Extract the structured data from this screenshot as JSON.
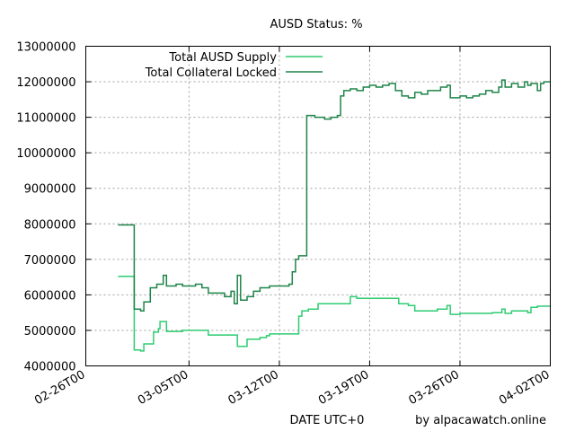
{
  "chart_data": {
    "type": "line",
    "title": "AUSD Status: %",
    "xlabel": "DATE UTC+0",
    "ylabel": "",
    "credit": "by alpacawatch.online",
    "xlim": [
      "2024-02-26",
      "2024-04-02"
    ],
    "ylim": [
      4000000,
      13000000
    ],
    "grid": true,
    "legend_position": "top-left",
    "x_ticks": [
      {
        "date": "2024-02-26",
        "label": "02-26T00"
      },
      {
        "date": "2024-03-05",
        "label": "03-05T00"
      },
      {
        "date": "2024-03-12",
        "label": "03-12T00"
      },
      {
        "date": "2024-03-19",
        "label": "03-19T00"
      },
      {
        "date": "2024-03-26",
        "label": "03-26T00"
      },
      {
        "date": "2024-04-02",
        "label": "04-02T00"
      }
    ],
    "y_ticks": [
      {
        "value": 4000000,
        "label": "4000000"
      },
      {
        "value": 5000000,
        "label": "5000000"
      },
      {
        "value": 6000000,
        "label": "6000000"
      },
      {
        "value": 7000000,
        "label": "7000000"
      },
      {
        "value": 8000000,
        "label": "8000000"
      },
      {
        "value": 9000000,
        "label": "9000000"
      },
      {
        "value": 10000000,
        "label": "10000000"
      },
      {
        "value": 11000000,
        "label": "11000000"
      },
      {
        "value": 12000000,
        "label": "12000000"
      },
      {
        "value": 13000000,
        "label": "13000000"
      }
    ],
    "series": [
      {
        "name": "Total AUSD Supply",
        "color": "#2ecc71",
        "points": [
          [
            "2024-02-28 12:00",
            6520000
          ],
          [
            "2024-02-29 17:00",
            6520000
          ],
          [
            "2024-02-29 18:00",
            4450000
          ],
          [
            "2024-03-01 06:00",
            4420000
          ],
          [
            "2024-03-01 12:00",
            4620000
          ],
          [
            "2024-03-02 00:00",
            4620000
          ],
          [
            "2024-03-02 06:00",
            4950000
          ],
          [
            "2024-03-02 15:00",
            5050000
          ],
          [
            "2024-03-02 18:00",
            5250000
          ],
          [
            "2024-03-03 00:00",
            5250000
          ],
          [
            "2024-03-03 06:00",
            4970000
          ],
          [
            "2024-03-04 00:00",
            4970000
          ],
          [
            "2024-03-04 12:00",
            5000000
          ],
          [
            "2024-03-06 00:00",
            5000000
          ],
          [
            "2024-03-06 12:00",
            4870000
          ],
          [
            "2024-03-08 12:00",
            4870000
          ],
          [
            "2024-03-08 18:00",
            4550000
          ],
          [
            "2024-03-09 06:00",
            4550000
          ],
          [
            "2024-03-09 12:00",
            4750000
          ],
          [
            "2024-03-10 00:00",
            4750000
          ],
          [
            "2024-03-10 12:00",
            4800000
          ],
          [
            "2024-03-11 00:00",
            4850000
          ],
          [
            "2024-03-11 06:00",
            4900000
          ],
          [
            "2024-03-13 09:00",
            4900000
          ],
          [
            "2024-03-13 12:00",
            5400000
          ],
          [
            "2024-03-13 18:00",
            5550000
          ],
          [
            "2024-03-14 06:00",
            5600000
          ],
          [
            "2024-03-15 00:00",
            5750000
          ],
          [
            "2024-03-17 00:00",
            5750000
          ],
          [
            "2024-03-17 12:00",
            5950000
          ],
          [
            "2024-03-18 00:00",
            5900000
          ],
          [
            "2024-03-20 12:00",
            5900000
          ],
          [
            "2024-03-21 06:00",
            5750000
          ],
          [
            "2024-03-22 00:00",
            5700000
          ],
          [
            "2024-03-22 12:00",
            5550000
          ],
          [
            "2024-03-24 00:00",
            5550000
          ],
          [
            "2024-03-24 06:00",
            5600000
          ],
          [
            "2024-03-25 00:00",
            5700000
          ],
          [
            "2024-03-25 06:00",
            5450000
          ],
          [
            "2024-03-26 00:00",
            5480000
          ],
          [
            "2024-03-28 12:00",
            5500000
          ],
          [
            "2024-03-29 06:00",
            5600000
          ],
          [
            "2024-03-29 12:00",
            5480000
          ],
          [
            "2024-03-30 00:00",
            5550000
          ],
          [
            "2024-03-31 06:00",
            5500000
          ],
          [
            "2024-03-31 12:00",
            5650000
          ],
          [
            "2024-04-01 00:00",
            5680000
          ],
          [
            "2024-04-02 00:00",
            5680000
          ]
        ]
      },
      {
        "name": "Total Collateral Locked",
        "color": "#1e8449",
        "points": [
          [
            "2024-02-28 12:00",
            7970000
          ],
          [
            "2024-02-29 17:00",
            7970000
          ],
          [
            "2024-02-29 18:00",
            5600000
          ],
          [
            "2024-03-01 06:00",
            5550000
          ],
          [
            "2024-03-01 12:00",
            5800000
          ],
          [
            "2024-03-02 00:00",
            6200000
          ],
          [
            "2024-03-02 12:00",
            6300000
          ],
          [
            "2024-03-03 00:00",
            6550000
          ],
          [
            "2024-03-03 06:00",
            6250000
          ],
          [
            "2024-03-04 00:00",
            6300000
          ],
          [
            "2024-03-04 12:00",
            6250000
          ],
          [
            "2024-03-05 12:00",
            6300000
          ],
          [
            "2024-03-06 00:00",
            6200000
          ],
          [
            "2024-03-06 12:00",
            6050000
          ],
          [
            "2024-03-07 12:00",
            6050000
          ],
          [
            "2024-03-07 18:00",
            5950000
          ],
          [
            "2024-03-08 06:00",
            6100000
          ],
          [
            "2024-03-08 12:00",
            5750000
          ],
          [
            "2024-03-08 18:00",
            6550000
          ],
          [
            "2024-03-09 00:00",
            5850000
          ],
          [
            "2024-03-09 12:00",
            5950000
          ],
          [
            "2024-03-10 00:00",
            6100000
          ],
          [
            "2024-03-10 12:00",
            6200000
          ],
          [
            "2024-03-11 06:00",
            6250000
          ],
          [
            "2024-03-12 12:00",
            6250000
          ],
          [
            "2024-03-12 18:00",
            6300000
          ],
          [
            "2024-03-13 00:00",
            6650000
          ],
          [
            "2024-03-13 06:00",
            7000000
          ],
          [
            "2024-03-13 12:00",
            7100000
          ],
          [
            "2024-03-14 00:00",
            7100000
          ],
          [
            "2024-03-14 03:00",
            11050000
          ],
          [
            "2024-03-14 18:00",
            11000000
          ],
          [
            "2024-03-15 12:00",
            10950000
          ],
          [
            "2024-03-16 00:00",
            11000000
          ],
          [
            "2024-03-16 12:00",
            11050000
          ],
          [
            "2024-03-16 18:00",
            11600000
          ],
          [
            "2024-03-17 00:00",
            11750000
          ],
          [
            "2024-03-17 12:00",
            11800000
          ],
          [
            "2024-03-18 00:00",
            11750000
          ],
          [
            "2024-03-18 12:00",
            11850000
          ],
          [
            "2024-03-19 00:00",
            11900000
          ],
          [
            "2024-03-19 12:00",
            11850000
          ],
          [
            "2024-03-20 00:00",
            11900000
          ],
          [
            "2024-03-20 12:00",
            11950000
          ],
          [
            "2024-03-21 00:00",
            11750000
          ],
          [
            "2024-03-21 12:00",
            11600000
          ],
          [
            "2024-03-22 00:00",
            11550000
          ],
          [
            "2024-03-22 12:00",
            11700000
          ],
          [
            "2024-03-23 00:00",
            11650000
          ],
          [
            "2024-03-23 12:00",
            11750000
          ],
          [
            "2024-03-24 00:00",
            11750000
          ],
          [
            "2024-03-24 12:00",
            11850000
          ],
          [
            "2024-03-25 00:00",
            11900000
          ],
          [
            "2024-03-25 06:00",
            11550000
          ],
          [
            "2024-03-26 00:00",
            11600000
          ],
          [
            "2024-03-26 12:00",
            11550000
          ],
          [
            "2024-03-27 00:00",
            11600000
          ],
          [
            "2024-03-27 12:00",
            11650000
          ],
          [
            "2024-03-28 00:00",
            11750000
          ],
          [
            "2024-03-28 12:00",
            11700000
          ],
          [
            "2024-03-29 00:00",
            11850000
          ],
          [
            "2024-03-29 06:00",
            12050000
          ],
          [
            "2024-03-29 12:00",
            11850000
          ],
          [
            "2024-03-30 00:00",
            11950000
          ],
          [
            "2024-03-30 12:00",
            11850000
          ],
          [
            "2024-03-31 00:00",
            12000000
          ],
          [
            "2024-03-31 06:00",
            11900000
          ],
          [
            "2024-03-31 12:00",
            11950000
          ],
          [
            "2024-04-01 00:00",
            11750000
          ],
          [
            "2024-04-01 06:00",
            11950000
          ],
          [
            "2024-04-01 12:00",
            12000000
          ],
          [
            "2024-04-02 00:00",
            12000000
          ]
        ]
      }
    ]
  }
}
